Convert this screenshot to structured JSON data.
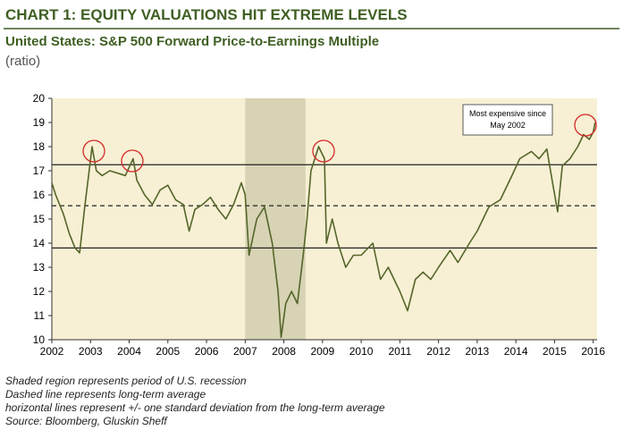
{
  "chart_data": {
    "type": "line",
    "title": "CHART 1: EQUITY VALUATIONS HIT EXTREME LEVELS",
    "subtitle": "United States:  S&P 500 Forward Price-to-Earnings Multiple",
    "y_label": "(ratio)",
    "annotation": [
      "Most expensive since",
      "May 2002"
    ],
    "notes": [
      "Shaded region represents period of U.S. recession",
      "Dashed line represents long-term average",
      "horizontal lines represent +/- one standard deviation from the long-term average",
      "Source: Bloomberg, Gluskin Sheff"
    ],
    "xlim": [
      2002,
      2016.1
    ],
    "xticks": [
      2002,
      2003,
      2004,
      2005,
      2006,
      2007,
      2008,
      2009,
      2010,
      2011,
      2012,
      2013,
      2014,
      2015,
      2016
    ],
    "ylim": [
      10,
      20
    ],
    "yticks": [
      10,
      11,
      12,
      13,
      14,
      15,
      16,
      17,
      18,
      19,
      20
    ],
    "shaded_region": [
      2007.0,
      2008.56
    ],
    "reference_lines": [
      {
        "value": 17.25,
        "style": "solid"
      },
      {
        "value": 15.55,
        "style": "dashed"
      },
      {
        "value": 13.8,
        "style": "solid"
      }
    ],
    "series": [
      {
        "name": "S&P 500 Forward P/E",
        "color": "#55652a",
        "x": [
          2002.0,
          2002.1,
          2002.3,
          2002.45,
          2002.6,
          2002.72,
          2002.85,
          2002.95,
          2003.04,
          2003.15,
          2003.3,
          2003.5,
          2003.7,
          2003.9,
          2004.1,
          2004.2,
          2004.4,
          2004.6,
          2004.8,
          2005.0,
          2005.2,
          2005.4,
          2005.55,
          2005.7,
          2005.9,
          2006.1,
          2006.3,
          2006.5,
          2006.7,
          2006.9,
          2007.0,
          2007.1,
          2007.3,
          2007.5,
          2007.7,
          2007.85,
          2007.93,
          2008.05,
          2008.2,
          2008.35,
          2008.5,
          2008.6,
          2008.7,
          2008.9,
          2009.05,
          2009.1,
          2009.25,
          2009.4,
          2009.6,
          2009.8,
          2010.0,
          2010.3,
          2010.5,
          2010.7,
          2011.0,
          2011.2,
          2011.4,
          2011.6,
          2011.8,
          2012.0,
          2012.3,
          2012.5,
          2012.8,
          2013.0,
          2013.3,
          2013.6,
          2013.9,
          2014.1,
          2014.4,
          2014.6,
          2014.8,
          2014.95,
          2015.08,
          2015.2,
          2015.4,
          2015.6,
          2015.75,
          2015.9,
          2016.0,
          2016.05
        ],
        "values": [
          16.5,
          16.0,
          15.2,
          14.4,
          13.8,
          13.6,
          15.5,
          16.8,
          18.0,
          17.0,
          16.8,
          17.0,
          16.9,
          16.8,
          17.5,
          16.6,
          16.0,
          15.6,
          16.2,
          16.4,
          15.8,
          15.6,
          14.5,
          15.4,
          15.6,
          15.9,
          15.4,
          15.0,
          15.6,
          16.5,
          16.0,
          13.5,
          15.0,
          15.5,
          14.0,
          12.0,
          10.1,
          11.5,
          12.0,
          11.5,
          13.5,
          15.0,
          17.0,
          18.0,
          17.5,
          14.0,
          15.0,
          14.0,
          13.0,
          13.5,
          13.5,
          14.0,
          12.5,
          13.0,
          12.0,
          11.2,
          12.5,
          12.8,
          12.5,
          13.0,
          13.7,
          13.2,
          14.0,
          14.5,
          15.5,
          15.8,
          16.8,
          17.5,
          17.8,
          17.5,
          17.9,
          16.5,
          15.3,
          17.2,
          17.5,
          18.0,
          18.5,
          18.3,
          18.6,
          19.0
        ]
      }
    ]
  }
}
